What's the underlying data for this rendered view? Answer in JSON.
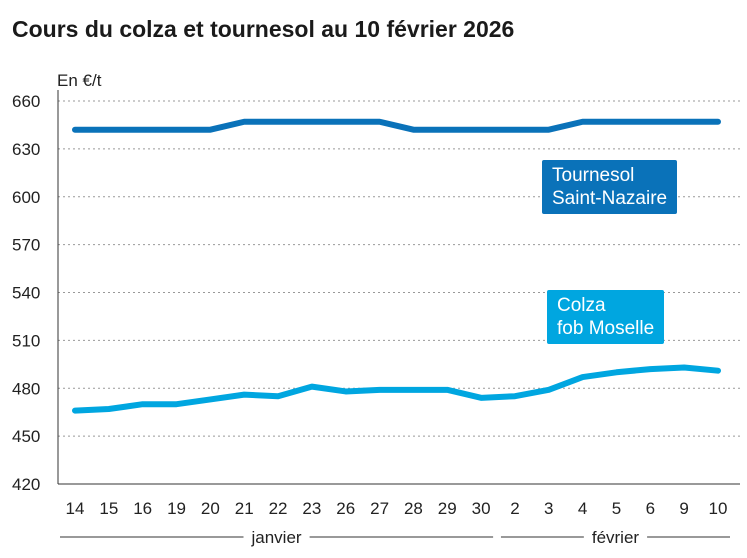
{
  "chart_data": {
    "type": "line",
    "title": "Cours du colza et tournesol au 10 février 2026",
    "ylabel": "En €/t",
    "ylim": [
      420,
      660
    ],
    "yticks": [
      420,
      450,
      480,
      510,
      540,
      570,
      600,
      630,
      660
    ],
    "grid": true,
    "categories": [
      "14",
      "15",
      "16",
      "19",
      "20",
      "21",
      "22",
      "23",
      "26",
      "27",
      "28",
      "29",
      "30",
      "2",
      "3",
      "4",
      "5",
      "6",
      "9",
      "10"
    ],
    "months": [
      {
        "label": "janvier",
        "from": 0,
        "to": 12
      },
      {
        "label": "février",
        "from": 13,
        "to": 19
      }
    ],
    "series": [
      {
        "name": "Tournesol Saint-Nazaire",
        "name_lines": [
          "Tournesol",
          "Saint-Nazaire"
        ],
        "color": "#0a72b9",
        "values": [
          642,
          642,
          642,
          642,
          642,
          647,
          647,
          647,
          647,
          647,
          642,
          642,
          642,
          642,
          642,
          647,
          647,
          647,
          647,
          647
        ]
      },
      {
        "name": "Colza fob Moselle",
        "name_lines": [
          "Colza",
          "fob Moselle"
        ],
        "color": "#00a6e0",
        "values": [
          466,
          467,
          470,
          470,
          473,
          476,
          475,
          481,
          478,
          479,
          479,
          479,
          474,
          475,
          479,
          487,
          490,
          492,
          493,
          491
        ]
      }
    ]
  }
}
